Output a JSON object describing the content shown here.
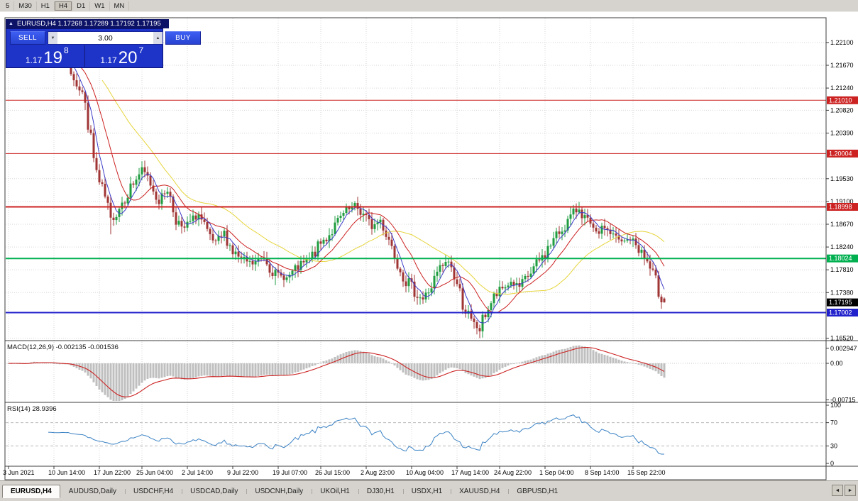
{
  "toolbar": {
    "timeframes": [
      "5",
      "M30",
      "H1",
      "H4",
      "D1",
      "W1",
      "MN"
    ],
    "active": "H4"
  },
  "ohlc_bar": {
    "collapse_icon": "▲",
    "text": "EURUSD,H4 1.17268 1.17289 1.17192 1.17195"
  },
  "trade_panel": {
    "sell_label": "SELL",
    "buy_label": "BUY",
    "volume": "3.00",
    "spin_down_icon": "▼",
    "spin_up_icon": "▲",
    "sell_prefix": "1.17",
    "sell_big": "19",
    "sell_sup": "8",
    "buy_prefix": "1.17",
    "buy_big": "20",
    "buy_sup": "7"
  },
  "price_axis": {
    "ticks": [
      {
        "label": "1.22100",
        "value": 1.221
      },
      {
        "label": "1.21670",
        "value": 1.2167
      },
      {
        "label": "1.21240",
        "value": 1.2124
      },
      {
        "label": "1.20820",
        "value": 1.2082
      },
      {
        "label": "1.20390",
        "value": 1.2039
      },
      {
        "label": "1.19530",
        "value": 1.1953
      },
      {
        "label": "1.19100",
        "value": 1.191
      },
      {
        "label": "1.18670",
        "value": 1.1867
      },
      {
        "label": "1.18240",
        "value": 1.1824
      },
      {
        "label": "1.17810",
        "value": 1.1781
      },
      {
        "label": "1.17380",
        "value": 1.1738
      },
      {
        "label": "1.16520",
        "value": 1.1652
      }
    ]
  },
  "time_axis": {
    "ticks": [
      {
        "label": "3 Jun 2021",
        "bar": 0
      },
      {
        "label": "10 Jun 14:00",
        "bar": 16
      },
      {
        "label": "17 Jun 22:00",
        "bar": 32
      },
      {
        "label": "25 Jun 04:00",
        "bar": 47
      },
      {
        "label": "2 Jul 14:00",
        "bar": 63
      },
      {
        "label": "9 Jul 22:00",
        "bar": 79
      },
      {
        "label": "19 Jul 07:00",
        "bar": 95
      },
      {
        "label": "26 Jul 15:00",
        "bar": 110
      },
      {
        "label": "2 Aug 23:00",
        "bar": 126
      },
      {
        "label": "10 Aug 04:00",
        "bar": 142
      },
      {
        "label": "17 Aug 14:00",
        "bar": 158
      },
      {
        "label": "24 Aug 22:00",
        "bar": 173
      },
      {
        "label": "1 Sep 04:00",
        "bar": 189
      },
      {
        "label": "8 Sep 14:00",
        "bar": 205
      },
      {
        "label": "15 Sep 22:00",
        "bar": 220
      }
    ]
  },
  "panes": {
    "macd": {
      "title": "MACD(12,26,9) -0.002135 -0.001536",
      "axis": [
        {
          "label": "0.002947",
          "v": 0.002947
        },
        {
          "label": "0.00",
          "v": 0
        },
        {
          "label": "-0.00715",
          "v": -0.00715
        }
      ]
    },
    "rsi": {
      "title": "RSI(14) 28.9396",
      "axis": [
        {
          "label": "100",
          "v": 100
        },
        {
          "label": "70",
          "v": 70
        },
        {
          "label": "30",
          "v": 30
        },
        {
          "label": "0",
          "v": 0
        }
      ],
      "levels": [
        70,
        30
      ]
    }
  },
  "tabs": [
    {
      "label": "EURUSD,H4",
      "active": true
    },
    {
      "label": "AUDUSD,Daily",
      "active": false
    },
    {
      "label": "USDCHF,H4",
      "active": false
    },
    {
      "label": "USDCAD,Daily",
      "active": false
    },
    {
      "label": "USDCNH,Daily",
      "active": false
    },
    {
      "label": "UKOil,H1",
      "active": false
    },
    {
      "label": "DJ30,H1",
      "active": false
    },
    {
      "label": "USDX,H1",
      "active": false
    },
    {
      "label": "XAUUSD,H4",
      "active": false
    },
    {
      "label": "GBPUSD,H1",
      "active": false
    }
  ],
  "nav": {
    "left": "◄",
    "right": "►"
  },
  "chart_data": {
    "type": "candlestick",
    "title": "EURUSD,H4",
    "symbol": "EURUSD",
    "timeframe": "H4",
    "last": {
      "open": 1.17268,
      "high": 1.17289,
      "low": 1.17192,
      "close": 1.17195
    },
    "bars": 232,
    "seed": 7,
    "price_top": 1.225,
    "anchors": [
      [
        0,
        1.219
      ],
      [
        4,
        1.2172
      ],
      [
        8,
        1.2205
      ],
      [
        11,
        1.218
      ],
      [
        14,
        1.2195
      ],
      [
        17,
        1.217
      ],
      [
        20,
        1.218
      ],
      [
        23,
        1.215
      ],
      [
        26,
        1.2115
      ],
      [
        28,
        1.206
      ],
      [
        30,
        1.199
      ],
      [
        32,
        1.194
      ],
      [
        34,
        1.1915
      ],
      [
        36,
        1.1872
      ],
      [
        38,
        1.189
      ],
      [
        41,
        1.192
      ],
      [
        44,
        1.1945
      ],
      [
        47,
        1.197
      ],
      [
        50,
        1.1945
      ],
      [
        53,
        1.191
      ],
      [
        56,
        1.1935
      ],
      [
        58,
        1.1895
      ],
      [
        61,
        1.1855
      ],
      [
        64,
        1.187
      ],
      [
        67,
        1.1885
      ],
      [
        70,
        1.1845
      ],
      [
        73,
        1.183
      ],
      [
        76,
        1.185
      ],
      [
        79,
        1.1815
      ],
      [
        82,
        1.18
      ],
      [
        86,
        1.1792
      ],
      [
        90,
        1.1805
      ],
      [
        94,
        1.1772
      ],
      [
        98,
        1.1765
      ],
      [
        102,
        1.1785
      ],
      [
        106,
        1.18
      ],
      [
        110,
        1.183
      ],
      [
        114,
        1.1855
      ],
      [
        118,
        1.1885
      ],
      [
        122,
        1.1902
      ],
      [
        125,
        1.1885
      ],
      [
        128,
        1.1862
      ],
      [
        131,
        1.1875
      ],
      [
        134,
        1.184
      ],
      [
        137,
        1.18
      ],
      [
        140,
        1.1762
      ],
      [
        143,
        1.174
      ],
      [
        146,
        1.1725
      ],
      [
        149,
        1.175
      ],
      [
        152,
        1.1782
      ],
      [
        155,
        1.1798
      ],
      [
        157,
        1.177
      ],
      [
        160,
        1.172
      ],
      [
        163,
        1.168
      ],
      [
        166,
        1.1668
      ],
      [
        168,
        1.17
      ],
      [
        171,
        1.1728
      ],
      [
        174,
        1.1745
      ],
      [
        177,
        1.1758
      ],
      [
        180,
        1.1748
      ],
      [
        183,
        1.1768
      ],
      [
        186,
        1.179
      ],
      [
        189,
        1.1812
      ],
      [
        192,
        1.1838
      ],
      [
        195,
        1.1858
      ],
      [
        198,
        1.188
      ],
      [
        201,
        1.1898
      ],
      [
        204,
        1.1868
      ],
      [
        207,
        1.1848
      ],
      [
        210,
        1.1862
      ],
      [
        213,
        1.1845
      ],
      [
        216,
        1.1832
      ],
      [
        219,
        1.184
      ],
      [
        222,
        1.1822
      ],
      [
        225,
        1.1795
      ],
      [
        227,
        1.1768
      ],
      [
        229,
        1.1742
      ],
      [
        231,
        1.17195
      ]
    ],
    "spikes": [
      [
        8,
        "h",
        1.2226
      ],
      [
        28,
        "h",
        1.211
      ],
      [
        36,
        "l",
        1.1848
      ],
      [
        94,
        "l",
        1.1752
      ],
      [
        122,
        "h",
        1.1909
      ],
      [
        166,
        "l",
        1.1652
      ],
      [
        201,
        "h",
        1.1909
      ]
    ],
    "levels": [
      {
        "price": 1.2101,
        "label": "1.21010",
        "color": "#cc2222",
        "lw": 1
      },
      {
        "price": 1.20004,
        "label": "1.20004",
        "color": "#cc2222",
        "lw": 1
      },
      {
        "price": 1.18998,
        "label": "1.18998",
        "color": "#cc2222",
        "lw": 2
      },
      {
        "price": 1.18024,
        "label": "1.18024",
        "color": "#00b050",
        "lw": 2
      },
      {
        "price": 1.17002,
        "label": "1.17002",
        "color": "#2222cc",
        "lw": 2
      }
    ],
    "bid": {
      "price": 1.17195,
      "label": "1.17195"
    },
    "ma": [
      {
        "period": 34,
        "color": "#e6d43c"
      },
      {
        "period": 13,
        "color": "#cc2222"
      },
      {
        "period": 5,
        "color": "#3c3cc8"
      }
    ],
    "macd": {
      "fast": 12,
      "slow": 26,
      "signal": 9,
      "last_main": -0.002135,
      "last_signal": -0.001536
    },
    "rsi": {
      "period": 14,
      "last": 28.9396
    },
    "colors": {
      "up": "#1f9d40",
      "down": "#a03535",
      "grid": "#d6d6d6",
      "macd_hist": "#bfbfbf",
      "macd_signal": "#cc2222",
      "rsi_line": "#3b82c4"
    }
  }
}
